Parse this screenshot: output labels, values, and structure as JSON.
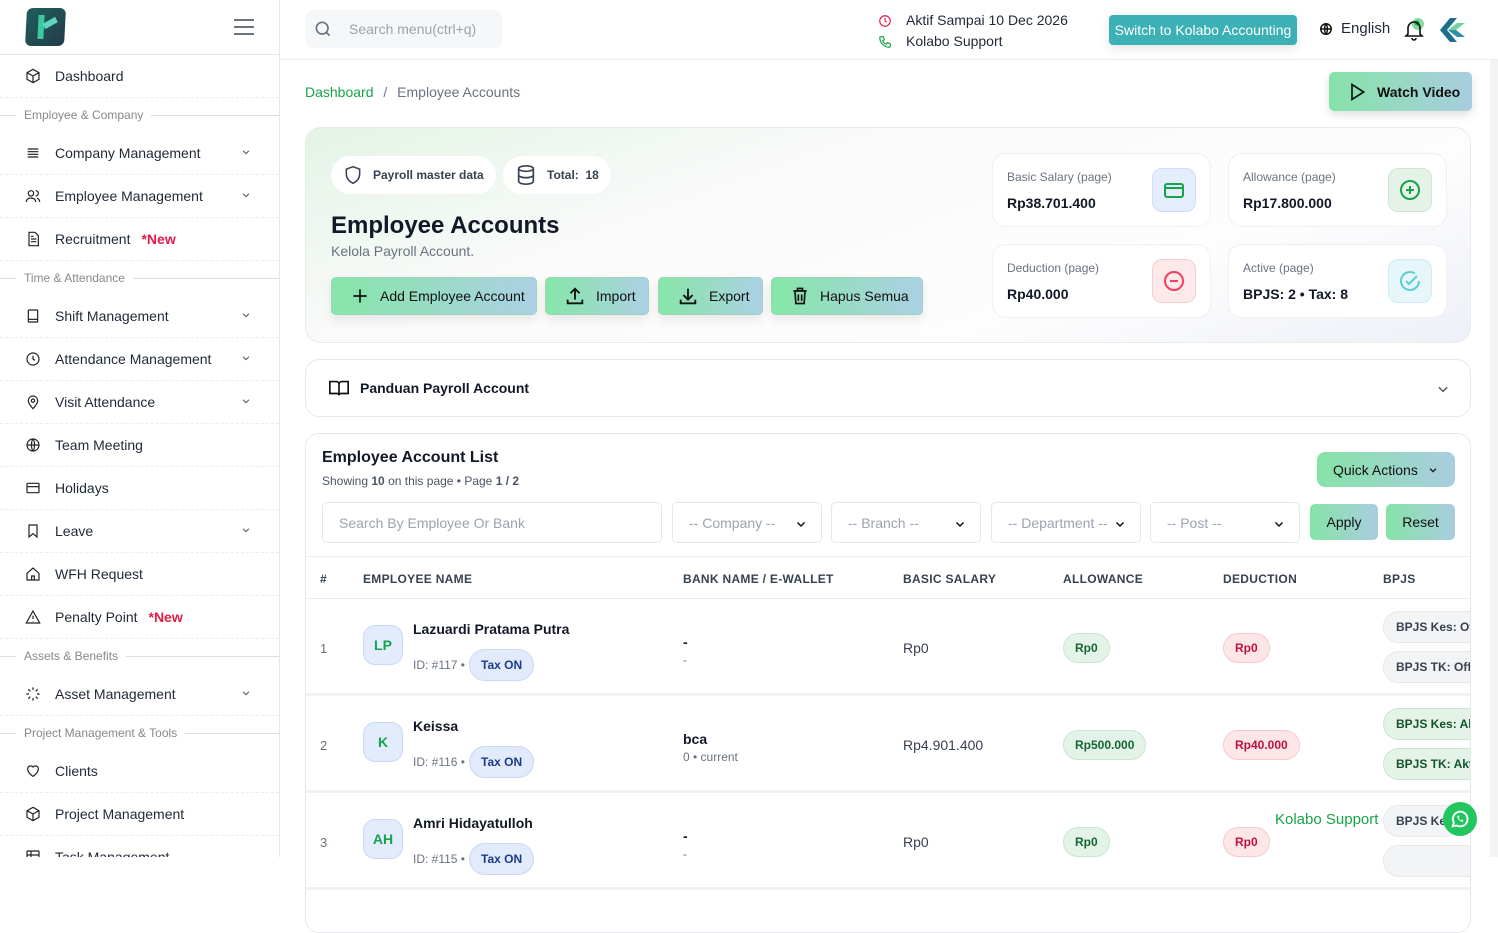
{
  "sidebar": {
    "items": [
      {
        "type": "item",
        "label": "Dashboard",
        "icon": "cube-icon"
      },
      {
        "type": "section",
        "label": "Employee & Company"
      },
      {
        "type": "item",
        "label": "Company Management",
        "icon": "list-icon",
        "chevron": true
      },
      {
        "type": "item",
        "label": "Employee Management",
        "icon": "users-icon",
        "chevron": true
      },
      {
        "type": "item",
        "label": "Recruitment",
        "icon": "document-icon",
        "badge": "*New"
      },
      {
        "type": "section",
        "label": "Time & Attendance"
      },
      {
        "type": "item",
        "label": "Shift Management",
        "icon": "tablet-icon",
        "chevron": true
      },
      {
        "type": "item",
        "label": "Attendance Management",
        "icon": "clock-icon",
        "chevron": true
      },
      {
        "type": "item",
        "label": "Visit Attendance",
        "icon": "map-pin-icon",
        "chevron": true
      },
      {
        "type": "item",
        "label": "Team Meeting",
        "icon": "globe-icon"
      },
      {
        "type": "item",
        "label": "Holidays",
        "icon": "card-icon"
      },
      {
        "type": "item",
        "label": "Leave",
        "icon": "bookmark-icon",
        "chevron": true
      },
      {
        "type": "item",
        "label": "WFH Request",
        "icon": "home-icon"
      },
      {
        "type": "item",
        "label": "Penalty Point",
        "icon": "warning-icon",
        "badge": "*New"
      },
      {
        "type": "section",
        "label": "Assets & Benefits"
      },
      {
        "type": "item",
        "label": "Asset Management",
        "icon": "loader-icon",
        "chevron": true
      },
      {
        "type": "section",
        "label": "Project Management & Tools"
      },
      {
        "type": "item",
        "label": "Clients",
        "icon": "heart-icon"
      },
      {
        "type": "item",
        "label": "Project Management",
        "icon": "cube-icon"
      },
      {
        "type": "item",
        "label": "Task Management",
        "icon": "table-icon"
      }
    ]
  },
  "topbar": {
    "search_placeholder": "Search menu(ctrl+q)",
    "active_until": "Aktif Sampai 10 Dec 2026",
    "support": "Kolabo Support",
    "switch_label": "Switch to Kolabo Accounting",
    "language": "English"
  },
  "breadcrumb": {
    "home": "Dashboard",
    "current": "Employee Accounts"
  },
  "watch_video": "Watch Video",
  "hero": {
    "chip_master": "Payroll master data",
    "chip_total_label": "Total:",
    "chip_total_value": "18",
    "title": "Employee Accounts",
    "subtitle": "Kelola Payroll Account.",
    "actions": [
      "Add Employee Account",
      "Import",
      "Export",
      "Hapus Semua"
    ],
    "stats": [
      {
        "label": "Basic Salary (page)",
        "value": "Rp38.701.400",
        "icon": "credit-card-icon",
        "color": "#16a34a"
      },
      {
        "label": "Allowance (page)",
        "value": "Rp17.800.000",
        "icon": "plus-circle-icon",
        "color": "#16a34a"
      },
      {
        "label": "Deduction (page)",
        "value": "Rp40.000",
        "icon": "minus-circle-icon",
        "color": "#f43f5e"
      },
      {
        "label": "Active (page)",
        "value": "BPJS: 2 • Tax: 8",
        "icon": "check-circle-icon",
        "color": "#5ccfd6"
      }
    ]
  },
  "guide": {
    "title": "Panduan Payroll Account"
  },
  "list": {
    "title": "Employee Account List",
    "showing_prefix": "Showing",
    "showing_count": "10",
    "showing_mid": "on this page • Page",
    "page": "1 / 2",
    "quick_actions": "Quick Actions",
    "filters": {
      "search_placeholder": "Search By Employee Or Bank",
      "company": "-- Company --",
      "branch": "-- Branch --",
      "department": "-- Department --",
      "post": "-- Post --",
      "apply": "Apply",
      "reset": "Reset"
    },
    "columns": [
      "#",
      "EMPLOYEE NAME",
      "BANK NAME / E-WALLET",
      "BASIC SALARY",
      "ALLOWANCE",
      "DEDUCTION",
      "BPJS"
    ],
    "rows": [
      {
        "no": "1",
        "initials": "LP",
        "name": "Lazuardi Pratama Putra",
        "id": "ID: #117 •",
        "tax": "Tax ON",
        "bank": "-",
        "bank_sub": "-",
        "salary": "Rp0",
        "allowance": "Rp0",
        "deduction": "Rp0",
        "bpjs_kes": "BPJS Kes: Off",
        "bpjs_tk": "BPJS TK: Off",
        "bpjs_active": false
      },
      {
        "no": "2",
        "initials": "K",
        "name": "Keissa",
        "id": "ID: #116 •",
        "tax": "Tax ON",
        "bank": "bca",
        "bank_sub": "0 • current",
        "salary": "Rp4.901.400",
        "allowance": "Rp500.000",
        "deduction": "Rp40.000",
        "bpjs_kes": "BPJS Kes: Aktif",
        "bpjs_tk": "BPJS TK: Aktif",
        "bpjs_active": true
      },
      {
        "no": "3",
        "initials": "AH",
        "name": "Amri Hidayatulloh",
        "id": "ID: #115 •",
        "tax": "Tax ON",
        "bank": "-",
        "bank_sub": "-",
        "salary": "Rp0",
        "allowance": "Rp0",
        "deduction": "Rp0",
        "bpjs_kes": "BPJS Ke",
        "bpjs_tk": "",
        "bpjs_active": false
      }
    ]
  },
  "support_widget": {
    "label": "Kolabo Support",
    "icon": "whatsapp-icon"
  }
}
